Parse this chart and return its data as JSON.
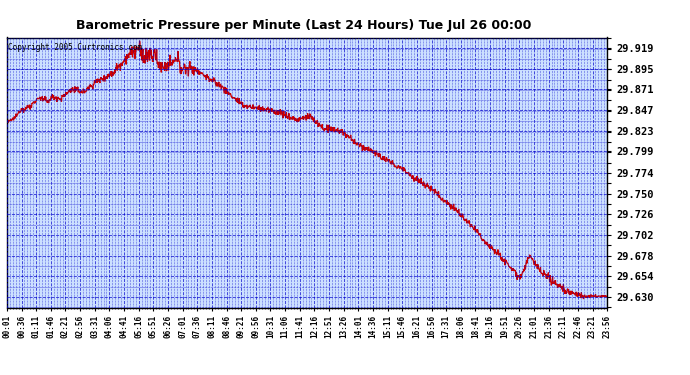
{
  "title": "Barometric Pressure per Minute (Last 24 Hours) Tue Jul 26 00:00",
  "copyright": "Copyright 2005 Curtronics.com",
  "yticks": [
    29.919,
    29.895,
    29.871,
    29.847,
    29.823,
    29.799,
    29.774,
    29.75,
    29.726,
    29.702,
    29.678,
    29.654,
    29.63
  ],
  "ymin": 29.618,
  "ymax": 29.931,
  "line_color": "#cc0000",
  "bg_color": "#cce0ff",
  "grid_color": "#0000cc",
  "border_color": "#000000",
  "title_bg": "#ffffff",
  "xtick_labels": [
    "00:01",
    "00:36",
    "01:11",
    "01:46",
    "02:21",
    "02:56",
    "03:31",
    "04:06",
    "04:41",
    "05:16",
    "05:51",
    "06:26",
    "07:01",
    "07:36",
    "08:11",
    "08:46",
    "09:21",
    "09:56",
    "10:31",
    "11:06",
    "11:41",
    "12:16",
    "12:51",
    "13:26",
    "14:01",
    "14:36",
    "15:11",
    "15:46",
    "16:21",
    "16:56",
    "17:31",
    "18:06",
    "18:41",
    "19:16",
    "19:51",
    "20:26",
    "21:01",
    "21:36",
    "22:11",
    "22:46",
    "23:21",
    "23:56"
  ]
}
